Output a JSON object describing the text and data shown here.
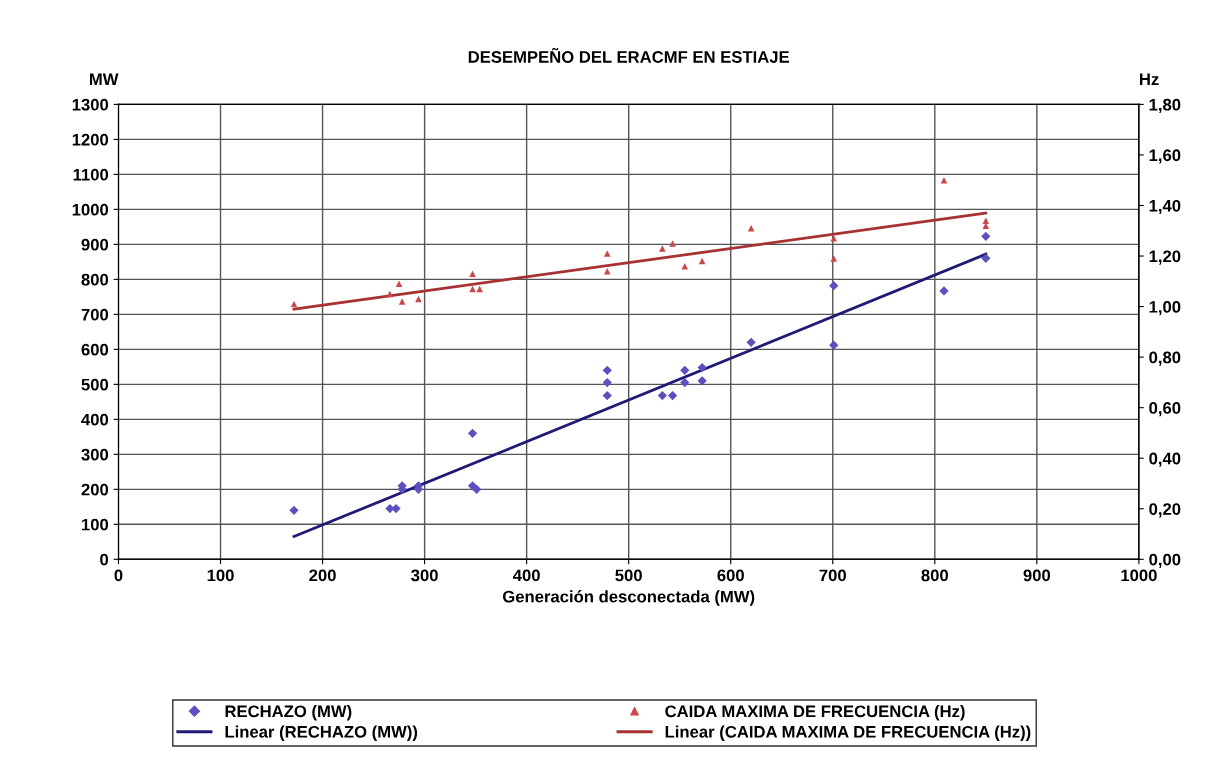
{
  "chart_data": {
    "type": "scatter",
    "title": "DESEMPEÑO DEL ERACMF EN ESTIAJE",
    "xlabel": "Generación desconectada (MW)",
    "ylabel": "MW",
    "y2label": "Hz",
    "xlim": [
      0,
      1000
    ],
    "xticks": [
      0,
      100,
      200,
      300,
      400,
      500,
      600,
      700,
      800,
      900,
      1000
    ],
    "ylim": [
      0,
      1300
    ],
    "yticks": [
      0,
      100,
      200,
      300,
      400,
      500,
      600,
      700,
      800,
      900,
      1000,
      1100,
      1200,
      1300
    ],
    "y2lim": [
      0,
      1.8
    ],
    "y2ticks": [
      {
        "value": 0,
        "label": "0,00"
      },
      {
        "value": 0.2,
        "label": "0,20"
      },
      {
        "value": 0.4,
        "label": "0,40"
      },
      {
        "value": 0.6,
        "label": "0,60"
      },
      {
        "value": 0.8,
        "label": "0,80"
      },
      {
        "value": 1.0,
        "label": "1,00"
      },
      {
        "value": 1.2,
        "label": "1,20"
      },
      {
        "value": 1.4,
        "label": "1,40"
      },
      {
        "value": 1.6,
        "label": "1,60"
      },
      {
        "value": 1.8,
        "label": "1,80"
      }
    ],
    "grid": true,
    "legend": "bottom",
    "series": [
      {
        "name": "RECHAZO (MW)",
        "marker": "diamond",
        "color": "#5b4fc4",
        "x": [
          172,
          266,
          272,
          278,
          278,
          294,
          294,
          347,
          347,
          351,
          479,
          479,
          479,
          533,
          543,
          555,
          555,
          572,
          572,
          620,
          701,
          701,
          809,
          850,
          850
        ],
        "values": [
          140,
          145,
          145,
          210,
          200,
          210,
          200,
          360,
          210,
          200,
          540,
          505,
          468,
          468,
          468,
          540,
          505,
          548,
          510,
          620,
          782,
          612,
          767,
          923,
          860
        ]
      },
      {
        "name": "CAIDA MAXIMA DE FRECUENCIA (Hz)",
        "axis": "y2",
        "marker": "triangle",
        "color": "#d04545",
        "x": [
          172,
          266,
          275,
          278,
          294,
          347,
          347,
          354,
          479,
          479,
          533,
          543,
          555,
          572,
          620,
          701,
          701,
          809,
          850,
          850
        ],
        "values": [
          1.01,
          1.05,
          1.09,
          1.02,
          1.03,
          1.13,
          1.07,
          1.07,
          1.21,
          1.14,
          1.23,
          1.25,
          1.16,
          1.18,
          1.31,
          1.27,
          1.19,
          1.5,
          1.34,
          1.32
        ]
      },
      {
        "name": "Linear (RECHAZO (MW))",
        "type": "line",
        "marker": "none",
        "color": "#1f1a78",
        "x": [
          172,
          850
        ],
        "values": [
          65,
          872
        ]
      },
      {
        "name": "Linear (CAIDA MAXIMA DE FRECUENCIA (Hz))",
        "type": "line",
        "axis": "y2",
        "marker": "none",
        "color": "#a83232",
        "x": [
          172,
          850
        ],
        "values": [
          0.99,
          1.37
        ]
      }
    ]
  }
}
